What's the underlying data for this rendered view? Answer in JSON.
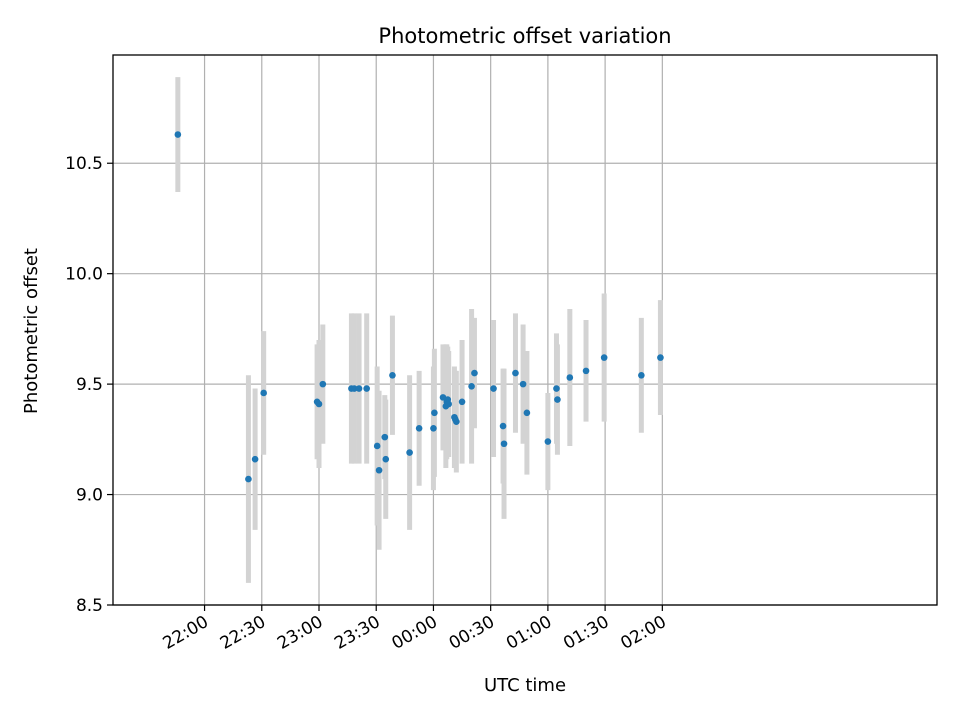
{
  "chart_data": {
    "type": "scatter",
    "title": "Photometric offset variation",
    "xlabel": "UTC time",
    "ylabel": "Photometric offset",
    "xaxis": {
      "unit": "minutes",
      "reference_label": "00:00",
      "range": [
        -168,
        264
      ],
      "ticks": [
        {
          "x": -120,
          "label": "22:00"
        },
        {
          "x": -90,
          "label": "22:30"
        },
        {
          "x": -60,
          "label": "23:00"
        },
        {
          "x": -30,
          "label": "23:30"
        },
        {
          "x": 0,
          "label": "00:00"
        },
        {
          "x": 30,
          "label": "00:30"
        },
        {
          "x": 60,
          "label": "01:00"
        },
        {
          "x": 90,
          "label": "01:30"
        },
        {
          "x": 120,
          "label": "02:00"
        }
      ]
    },
    "yaxis": {
      "range": [
        8.5,
        10.99
      ],
      "ticks": [
        {
          "y": 8.5,
          "label": "8.5"
        },
        {
          "y": 9.0,
          "label": "9.0"
        },
        {
          "y": 9.5,
          "label": "9.5"
        },
        {
          "y": 10.0,
          "label": "10.0"
        },
        {
          "y": 10.5,
          "label": "10.5"
        }
      ]
    },
    "grid": true,
    "colors": {
      "points": "#1f77b4",
      "errorbars": "#d3d3d3",
      "grid": "#b0b0b0"
    },
    "points": [
      {
        "x": -134,
        "y": 10.63,
        "err": 0.26
      },
      {
        "x": -97,
        "y": 9.07,
        "err": 0.47
      },
      {
        "x": -93.5,
        "y": 9.16,
        "err": 0.32
      },
      {
        "x": -89,
        "y": 9.46,
        "err": 0.28
      },
      {
        "x": -61,
        "y": 9.42,
        "err": 0.26
      },
      {
        "x": -60,
        "y": 9.41,
        "err": 0.29
      },
      {
        "x": -58,
        "y": 9.5,
        "err": 0.27
      },
      {
        "x": -43,
        "y": 9.48,
        "err": 0.34
      },
      {
        "x": -41.5,
        "y": 9.48,
        "err": 0.34
      },
      {
        "x": -39,
        "y": 9.48,
        "err": 0.34
      },
      {
        "x": -35,
        "y": 9.48,
        "err": 0.34
      },
      {
        "x": -29.5,
        "y": 9.22,
        "err": 0.36
      },
      {
        "x": -28.5,
        "y": 9.11,
        "err": 0.36
      },
      {
        "x": -25.5,
        "y": 9.26,
        "err": 0.19
      },
      {
        "x": -25,
        "y": 9.16,
        "err": 0.27
      },
      {
        "x": -21.5,
        "y": 9.54,
        "err": 0.27
      },
      {
        "x": -12.5,
        "y": 9.19,
        "err": 0.35
      },
      {
        "x": -7.5,
        "y": 9.3,
        "err": 0.26
      },
      {
        "x": 0,
        "y": 9.3,
        "err": 0.28
      },
      {
        "x": 0.5,
        "y": 9.37,
        "err": 0.29
      },
      {
        "x": 5,
        "y": 9.44,
        "err": 0.24
      },
      {
        "x": 6.5,
        "y": 9.4,
        "err": 0.28
      },
      {
        "x": 7,
        "y": 9.42,
        "err": 0.26
      },
      {
        "x": 7.5,
        "y": 9.43,
        "err": 0.24
      },
      {
        "x": 8,
        "y": 9.41,
        "err": 0.24
      },
      {
        "x": 11,
        "y": 9.35,
        "err": 0.23
      },
      {
        "x": 11.5,
        "y": 9.34,
        "err": 0.22
      },
      {
        "x": 12,
        "y": 9.33,
        "err": 0.23
      },
      {
        "x": 15,
        "y": 9.42,
        "err": 0.28
      },
      {
        "x": 20,
        "y": 9.49,
        "err": 0.35
      },
      {
        "x": 21.5,
        "y": 9.55,
        "err": 0.25
      },
      {
        "x": 31.5,
        "y": 9.48,
        "err": 0.31
      },
      {
        "x": 36.5,
        "y": 9.31,
        "err": 0.26
      },
      {
        "x": 37,
        "y": 9.23,
        "err": 0.34
      },
      {
        "x": 43,
        "y": 9.55,
        "err": 0.27
      },
      {
        "x": 47,
        "y": 9.5,
        "err": 0.27
      },
      {
        "x": 49,
        "y": 9.37,
        "err": 0.28
      },
      {
        "x": 60,
        "y": 9.24,
        "err": 0.22
      },
      {
        "x": 64.5,
        "y": 9.48,
        "err": 0.25
      },
      {
        "x": 65,
        "y": 9.43,
        "err": 0.25
      },
      {
        "x": 71.5,
        "y": 9.53,
        "err": 0.31
      },
      {
        "x": 80,
        "y": 9.56,
        "err": 0.23
      },
      {
        "x": 89.5,
        "y": 9.62,
        "err": 0.29
      },
      {
        "x": 109,
        "y": 9.54,
        "err": 0.26
      },
      {
        "x": 119,
        "y": 9.62,
        "err": 0.26
      }
    ]
  }
}
